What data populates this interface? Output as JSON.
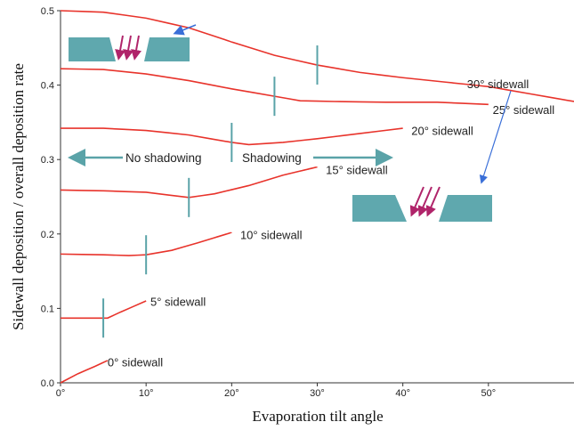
{
  "chart_data": {
    "type": "line",
    "xlabel": "Evaporation tilt angle",
    "ylabel": "Sidewall deposition / overall deposition rate",
    "xlim": [
      0,
      60
    ],
    "ylim": [
      0,
      0.5
    ],
    "x_ticks": [
      0,
      10,
      20,
      30,
      40,
      50
    ],
    "x_tick_labels": [
      "0°",
      "10°",
      "20°",
      "30°",
      "40°",
      "50°"
    ],
    "y_ticks": [
      0,
      0.1,
      0.2,
      0.3,
      0.4,
      0.5
    ],
    "y_tick_labels": [
      "0.0",
      "0.1",
      "0.2",
      "0.3",
      "0.4",
      "0.5"
    ],
    "grid": false,
    "colors": {
      "series": "#e8332b",
      "marker": "#5aa3a8",
      "arrow_blue": "#3a6fd8",
      "arrow_purple": "#b0246a",
      "block": "#5fa8ae"
    },
    "series": [
      {
        "name": "0° sidewall",
        "x": [
          0,
          2,
          4,
          5.5
        ],
        "y": [
          0.0,
          0.012,
          0.022,
          0.03
        ],
        "shadow_onset": null,
        "label_at": [
          5.5,
          0.027
        ]
      },
      {
        "name": "5° sidewall",
        "x": [
          0,
          3,
          5.5,
          7,
          10
        ],
        "y": [
          0.087,
          0.087,
          0.087,
          0.095,
          0.11
        ],
        "shadow_onset": 5,
        "label_at": [
          10.5,
          0.108
        ]
      },
      {
        "name": "10° sidewall",
        "x": [
          0,
          5,
          8,
          10,
          13,
          16,
          20
        ],
        "y": [
          0.173,
          0.172,
          0.171,
          0.172,
          0.178,
          0.188,
          0.202
        ],
        "shadow_onset": 10,
        "label_at": [
          21,
          0.198
        ]
      },
      {
        "name": "15° sidewall",
        "x": [
          0,
          5,
          10,
          15,
          18,
          22,
          26,
          30
        ],
        "y": [
          0.259,
          0.258,
          0.256,
          0.249,
          0.254,
          0.265,
          0.279,
          0.29
        ],
        "shadow_onset": 15,
        "label_at": [
          31,
          0.285
        ]
      },
      {
        "name": "20° sidewall",
        "x": [
          0,
          5,
          10,
          15,
          20,
          22,
          26,
          30,
          35,
          40
        ],
        "y": [
          0.342,
          0.342,
          0.339,
          0.333,
          0.323,
          0.32,
          0.323,
          0.328,
          0.335,
          0.342
        ],
        "shadow_onset": 20,
        "label_at": [
          41,
          0.338
        ]
      },
      {
        "name": "25° sidewall",
        "x": [
          0,
          5,
          10,
          15,
          20,
          25,
          28,
          32,
          38,
          44,
          50
        ],
        "y": [
          0.422,
          0.421,
          0.415,
          0.406,
          0.395,
          0.385,
          0.379,
          0.378,
          0.377,
          0.377,
          0.374
        ],
        "shadow_onset": 25,
        "label_at": [
          50.5,
          0.366
        ]
      },
      {
        "name": "30° sidewall",
        "x": [
          0,
          5,
          10,
          15,
          20,
          25,
          30,
          35,
          40,
          45,
          50,
          55,
          60
        ],
        "y": [
          0.5,
          0.498,
          0.49,
          0.477,
          0.458,
          0.44,
          0.427,
          0.417,
          0.41,
          0.404,
          0.398,
          0.388,
          0.378
        ],
        "shadow_onset": 30,
        "label_at": [
          47.5,
          0.401
        ]
      }
    ],
    "annotations": {
      "no_shadowing": "No shadowing",
      "shadowing": "Shadowing"
    }
  }
}
